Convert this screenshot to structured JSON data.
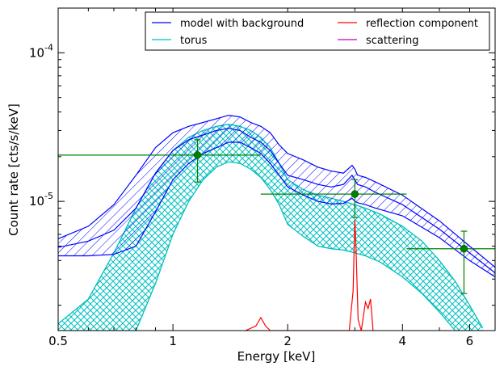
{
  "chart_data": {
    "type": "line",
    "xlabel": "Energy [keV]",
    "ylabel": "Count rate [cts/s/keV]",
    "x_scale": "log",
    "y_scale": "log",
    "xlim": [
      0.5,
      7.0
    ],
    "ylim": [
      1.35e-06,
      0.0002
    ],
    "x_ticks": [
      {
        "value": 0.5,
        "label": "0.5"
      },
      {
        "value": 1,
        "label": "1"
      },
      {
        "value": 2,
        "label": "2"
      },
      {
        "value": 4,
        "label": "4"
      },
      {
        "value": 6,
        "label": "6"
      }
    ],
    "y_ticks": [
      {
        "value": 1e-05,
        "mantissa": "10",
        "exp": "-5"
      },
      {
        "value": 0.0001,
        "mantissa": "10",
        "exp": "-4"
      }
    ],
    "legend_position": "top-right",
    "legend": [
      {
        "label": "model with background",
        "color": "#0000ff"
      },
      {
        "label": "torus",
        "color": "#00bfbf"
      },
      {
        "label": "reflection component",
        "color": "#ff0000"
      },
      {
        "label": "scattering",
        "color": "#bf00bf"
      }
    ],
    "series": [
      {
        "name": "model with background",
        "color": "#0000ff",
        "x": [
          0.5,
          0.6,
          0.7,
          0.8,
          0.9,
          1.0,
          1.1,
          1.2,
          1.3,
          1.4,
          1.5,
          1.6,
          1.7,
          1.8,
          1.9,
          2.0,
          2.2,
          2.4,
          2.6,
          2.8,
          2.95,
          3.0,
          3.05,
          3.2,
          3.4,
          4.0,
          5.0,
          6.0,
          7.0
        ],
        "upper": [
          5.6e-06,
          6.8e-06,
          9.5e-06,
          1.5e-05,
          2.3e-05,
          2.9e-05,
          3.2e-05,
          3.4e-05,
          3.6e-05,
          3.8e-05,
          3.7e-05,
          3.4e-05,
          3.2e-05,
          2.9e-05,
          2.4e-05,
          2.1e-05,
          1.9e-05,
          1.7e-05,
          1.6e-05,
          1.55e-05,
          1.75e-05,
          1.65e-05,
          1.5e-05,
          1.45e-05,
          1.35e-05,
          1.1e-05,
          7.4e-06,
          5e-06,
          3.6e-06
        ],
        "mid": [
          4.9e-06,
          5.4e-06,
          6.4e-06,
          9e-06,
          1.55e-05,
          2.2e-05,
          2.6e-05,
          2.8e-05,
          3e-05,
          3.1e-05,
          3e-05,
          2.7e-05,
          2.5e-05,
          2.2e-05,
          1.8e-05,
          1.5e-05,
          1.4e-05,
          1.3e-05,
          1.25e-05,
          1.3e-05,
          1.5e-05,
          1.4e-05,
          1.3e-05,
          1.25e-05,
          1.15e-05,
          9.5e-06,
          6.5e-06,
          4.5e-06,
          3.3e-06
        ],
        "lower": [
          4.3e-06,
          4.3e-06,
          4.4e-06,
          5e-06,
          8.5e-06,
          1.4e-05,
          1.8e-05,
          2.1e-05,
          2.3e-05,
          2.5e-05,
          2.5e-05,
          2.3e-05,
          2.1e-05,
          1.8e-05,
          1.5e-05,
          1.25e-05,
          1.1e-05,
          1e-05,
          9.6e-06,
          9.7e-06,
          1.05e-05,
          1e-05,
          9.8e-06,
          9.5e-06,
          9e-06,
          8e-06,
          5.7e-06,
          4e-06,
          3.1e-06
        ]
      },
      {
        "name": "torus",
        "color": "#00bfbf",
        "x": [
          0.5,
          0.6,
          0.7,
          0.8,
          0.9,
          1.0,
          1.1,
          1.2,
          1.3,
          1.4,
          1.5,
          1.6,
          1.7,
          1.8,
          1.9,
          2.0,
          2.2,
          2.4,
          2.6,
          2.8,
          3.0,
          3.2,
          3.5,
          4.0,
          4.5,
          5.0,
          5.5,
          6.0,
          6.5
        ],
        "upper": [
          1.5e-06,
          2.2e-06,
          4.5e-06,
          9e-06,
          1.55e-05,
          2.2e-05,
          2.7e-05,
          3e-05,
          3.2e-05,
          3.3e-05,
          3.2e-05,
          3e-05,
          2.7e-05,
          2.3e-05,
          1.8e-05,
          1.4e-05,
          1.2e-05,
          1.1e-05,
          1.05e-05,
          1e-05,
          9.5e-06,
          9e-06,
          8.2e-06,
          6.8e-06,
          5.4e-06,
          4e-06,
          2.9e-06,
          2e-06,
          1.4e-06
        ],
        "lower": [
          1.35e-06,
          1.35e-06,
          1.35e-06,
          1.35e-06,
          2.8e-06,
          6e-06,
          1e-05,
          1.4e-05,
          1.7e-05,
          1.85e-05,
          1.8e-05,
          1.65e-05,
          1.45e-05,
          1.2e-05,
          9.5e-06,
          7e-06,
          5.8e-06,
          5e-06,
          4.8e-06,
          4.7e-06,
          4.5e-06,
          4.3e-06,
          3.9e-06,
          3.1e-06,
          2.4e-06,
          1.8e-06,
          1.35e-06,
          1.35e-06,
          1.35e-06
        ]
      },
      {
        "name": "reflection component",
        "color": "#ff0000",
        "x": [
          1.55,
          1.65,
          1.7,
          1.75,
          1.8,
          2.9,
          2.97,
          3.0,
          3.02,
          3.06,
          3.12,
          3.2,
          3.25,
          3.3,
          3.35
        ],
        "values": [
          1.35e-06,
          1.45e-06,
          1.65e-06,
          1.45e-06,
          1.35e-06,
          1.35e-06,
          2.5e-06,
          7.5e-06,
          5e-06,
          1.6e-06,
          1.35e-06,
          2.1e-06,
          1.9e-06,
          2.2e-06,
          1.35e-06
        ]
      },
      {
        "name": "scattering",
        "color": "#bf00bf",
        "x": [
          3.0,
          3.1
        ],
        "values": [
          1.35e-06,
          1.35e-06
        ]
      }
    ],
    "data_points": {
      "color": "#008000",
      "points": [
        {
          "x": 1.16,
          "y": 2.05e-05,
          "xerr": [
            0.5,
            1.7
          ],
          "yerr": [
            1.35e-05,
            2.6e-05
          ]
        },
        {
          "x": 3.0,
          "y": 1.12e-05,
          "xerr": [
            1.7,
            4.1
          ],
          "yerr": [
            7.8e-06,
            1.4e-05
          ]
        },
        {
          "x": 5.8,
          "y": 4.8e-06,
          "xerr": [
            4.1,
            7.0
          ],
          "yerr": [
            2.4e-06,
            6.3e-06
          ]
        }
      ]
    }
  }
}
